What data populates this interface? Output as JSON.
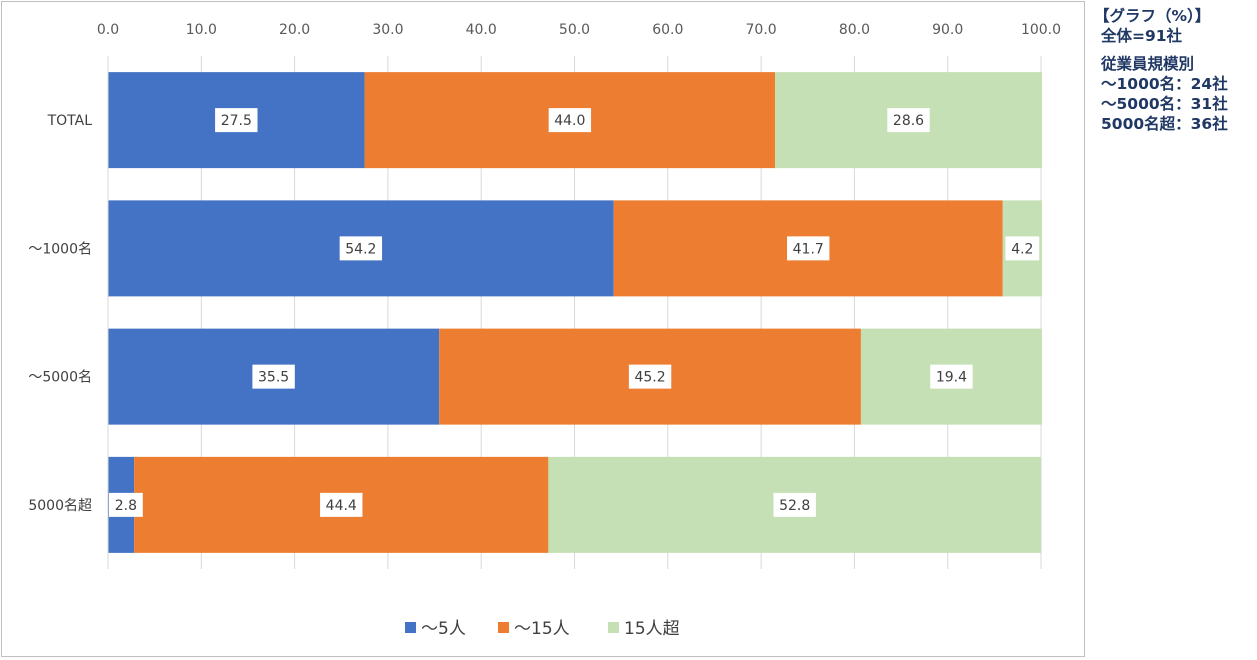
{
  "chart_data": {
    "type": "bar",
    "orientation": "horizontal",
    "stacked": true,
    "categories": [
      "TOTAL",
      "～1000名",
      "～5000名",
      "5000名超"
    ],
    "series": [
      {
        "name": "～5人",
        "values": [
          27.5,
          54.2,
          35.5,
          2.8
        ]
      },
      {
        "name": "～15人",
        "values": [
          44.0,
          41.7,
          45.2,
          44.4
        ]
      },
      {
        "name": "15人超",
        "values": [
          28.6,
          4.2,
          19.4,
          52.8
        ]
      }
    ],
    "xlim": [
      0,
      100
    ],
    "xticks": [
      "0.0",
      "10.0",
      "20.0",
      "30.0",
      "40.0",
      "50.0",
      "60.0",
      "70.0",
      "80.0",
      "90.0",
      "100.0"
    ],
    "x_axis_position": "top",
    "grid": "vertical",
    "legend_position": "bottom",
    "colors": [
      "#4472c4",
      "#ed7d31",
      "#c5e0b4"
    ]
  },
  "note": {
    "lines": [
      "【グラフ（%）】",
      "全体=91社",
      "従業員規模別",
      "～1000名：24社",
      "～5000名：31社",
      "5000名超：36社"
    ]
  }
}
